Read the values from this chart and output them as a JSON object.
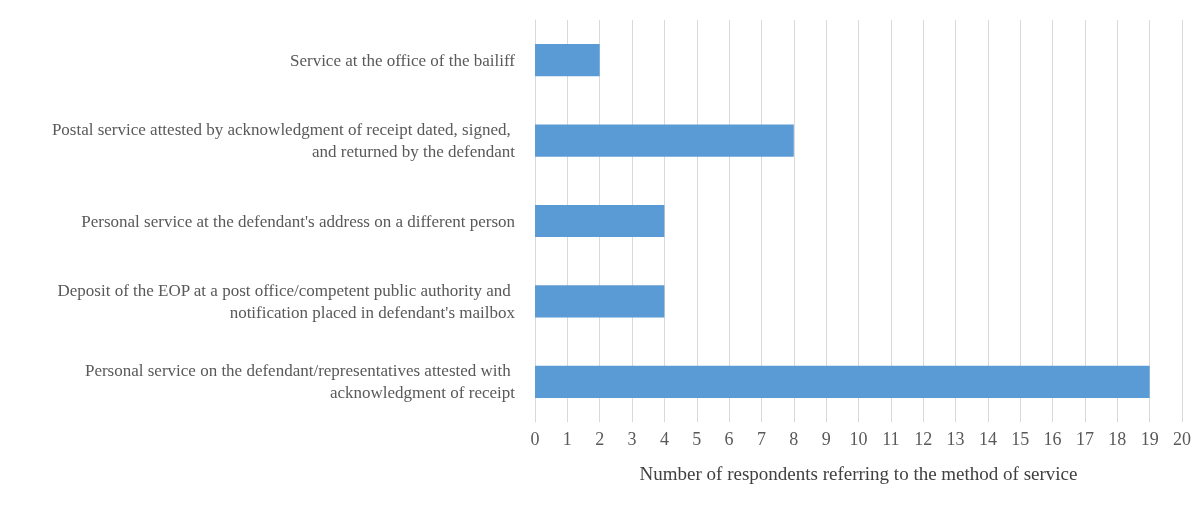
{
  "chart_data": {
    "type": "bar",
    "orientation": "horizontal",
    "categories": [
      "Service at the office of the bailiff",
      "Postal service attested by acknowledgment of receipt dated, signed, and returned by the defendant",
      "Personal service at the defendant's address on a different person",
      "Deposit of the EOP at a post office/competent public authority and notification placed in defendant's mailbox",
      "Personal service on the defendant/representatives attested with acknowledgment of receipt"
    ],
    "values": [
      2,
      8,
      4,
      4,
      19
    ],
    "color": "#5b9bd5",
    "xlim": [
      0,
      20
    ],
    "xticks": [
      0,
      1,
      2,
      3,
      4,
      5,
      6,
      7,
      8,
      9,
      10,
      11,
      12,
      13,
      14,
      15,
      16,
      17,
      18,
      19,
      20
    ],
    "xlabel": "Number of respondents referring to the method of service",
    "grid": "x"
  }
}
